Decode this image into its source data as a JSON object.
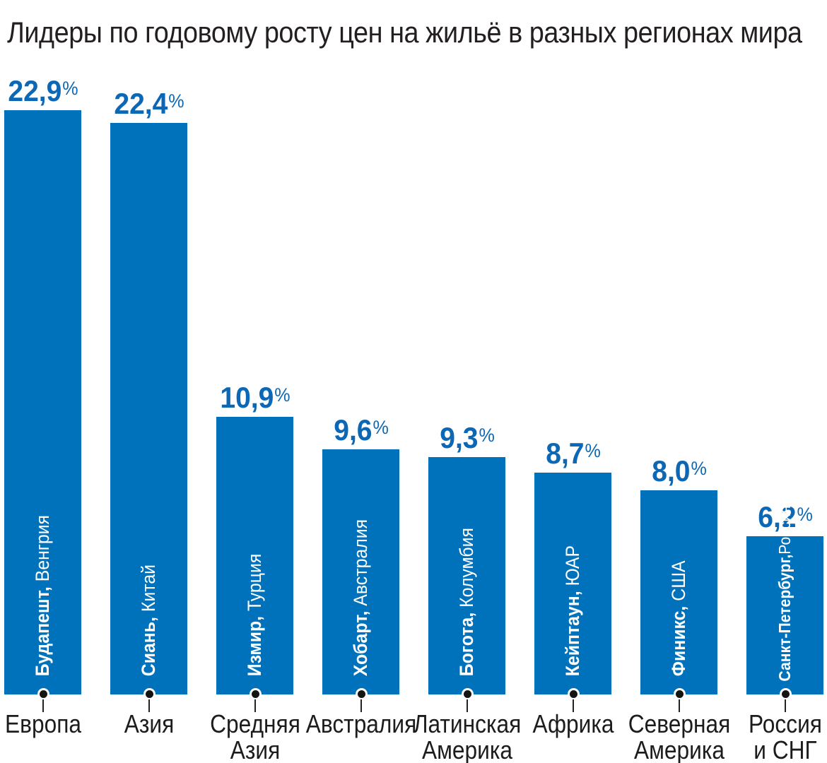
{
  "title": "Лидеры по годовому росту цен на жильё в разных регионах мира",
  "colors": {
    "bar": "#0072bc",
    "value_text": "#0c68b4",
    "inside_label_text": "#ffffff",
    "title_text": "#231f20",
    "region_text": "#1c1c1c",
    "dot": "#141414",
    "background": "#ffffff"
  },
  "chart_data": {
    "type": "bar",
    "title": "Лидеры по годовому росту цен на жильё в разных регионах мира",
    "xlabel": "",
    "ylabel": "",
    "unit": "%",
    "ylim": [
      0,
      24
    ],
    "grid": false,
    "legend": false,
    "value_label_position": "above-bar",
    "categories": [
      "Европа",
      "Азия",
      "Средняя Азия",
      "Австралия",
      "Латинская Америка",
      "Африка",
      "Северная Америка",
      "Россия и СНГ"
    ],
    "values": [
      22.9,
      22.4,
      10.9,
      9.6,
      9.3,
      8.7,
      8.0,
      6.2
    ],
    "bars": [
      {
        "region": "Европа",
        "region_lines": [
          "Европа"
        ],
        "city": "Будапешт",
        "country": "Венгрия",
        "value": 22.9,
        "value_label": "22,9",
        "wrap_inside_label": false
      },
      {
        "region": "Азия",
        "region_lines": [
          "Азия"
        ],
        "city": "Сиань",
        "country": "Китай",
        "value": 22.4,
        "value_label": "22,4",
        "wrap_inside_label": false
      },
      {
        "region": "Средняя Азия",
        "region_lines": [
          "Средняя",
          "Азия"
        ],
        "city": "Измир",
        "country": "Турция",
        "value": 10.9,
        "value_label": "10,9",
        "wrap_inside_label": false
      },
      {
        "region": "Австралия",
        "region_lines": [
          "Австралия"
        ],
        "city": "Хобарт",
        "country": "Австралия",
        "value": 9.6,
        "value_label": "9,6",
        "wrap_inside_label": false
      },
      {
        "region": "Латинская Америка",
        "region_lines": [
          "Латинская",
          "Америка"
        ],
        "city": "Богота",
        "country": "Колумбия",
        "value": 9.3,
        "value_label": "9,3",
        "wrap_inside_label": false
      },
      {
        "region": "Африка",
        "region_lines": [
          "Африка"
        ],
        "city": "Кейптаун",
        "country": "ЮАР",
        "value": 8.7,
        "value_label": "8,7",
        "wrap_inside_label": false
      },
      {
        "region": "Северная Америка",
        "region_lines": [
          "Северная",
          "Америка"
        ],
        "city": "Финикс",
        "country": "США",
        "value": 8.0,
        "value_label": "8,0",
        "wrap_inside_label": false
      },
      {
        "region": "Россия и СНГ",
        "region_lines": [
          "Россия",
          "и СНГ"
        ],
        "city": "Санкт-Петербург",
        "country": "Россия",
        "value": 6.2,
        "value_label": "6,2",
        "wrap_inside_label": true
      }
    ]
  }
}
